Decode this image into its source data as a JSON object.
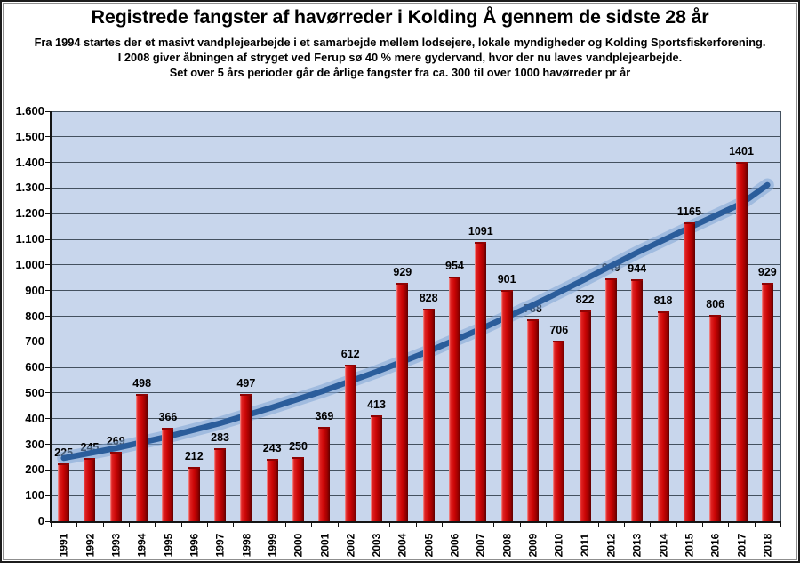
{
  "header": {
    "title": "Registrede fangster af havørreder i Kolding Å gennem de sidste 28 år",
    "subtitle_lines": [
      "Fra 1994 startes der et masivt vandplejearbejde i et samarbejde mellem lodsejere, lokale myndigheder og Kolding Sportsfiskerforening.",
      "I 2008 giver åbningen af stryget ved Ferup sø  40 % mere gydervand, hvor der nu laves vandplejearbejde.",
      "Set over 5 års perioder går de årlige fangster fra ca. 300 til over 1000 havørreder pr år"
    ]
  },
  "chart_data": {
    "type": "bar",
    "title": "Registrede fangster af havørreder i Kolding Å gennem de sidste 28 år",
    "categories": [
      "1991",
      "1992",
      "1993",
      "1994",
      "1995",
      "1996",
      "1997",
      "1998",
      "1999",
      "2000",
      "2001",
      "2002",
      "2003",
      "2004",
      "2005",
      "2006",
      "2007",
      "2008",
      "2009",
      "2010",
      "2011",
      "2012",
      "2013",
      "2014",
      "2015",
      "2016",
      "2017",
      "2018"
    ],
    "values": [
      225,
      245,
      269,
      498,
      366,
      212,
      283,
      497,
      243,
      250,
      369,
      612,
      413,
      929,
      828,
      954,
      1091,
      901,
      788,
      706,
      822,
      949,
      944,
      818,
      1165,
      806,
      1401,
      929
    ],
    "xlabel": "",
    "ylabel": "",
    "ylim": [
      0,
      1600
    ],
    "y_tick_step": 100,
    "y_tick_labels": [
      "0",
      "100",
      "200",
      "300",
      "400",
      "500",
      "600",
      "700",
      "800",
      "900",
      "1.000",
      "1.100",
      "1.200",
      "1.300",
      "1.400",
      "1.500",
      "1.600"
    ],
    "grid": true,
    "legend": "none",
    "colors": {
      "bar": "#cb0505",
      "bar_shadow": "#5e0000",
      "plot_background": "#c8d6ec",
      "gridline": "#44515f",
      "trend_core": "#2b5d9b",
      "trend_glow": "#7fa6d6",
      "text": "#000000"
    },
    "trend": {
      "type": "smooth-exponential-line",
      "points": [
        {
          "year": 1991,
          "value": 246
        },
        {
          "year": 1993,
          "value": 285
        },
        {
          "year": 1995,
          "value": 330
        },
        {
          "year": 1997,
          "value": 382
        },
        {
          "year": 1999,
          "value": 444
        },
        {
          "year": 2001,
          "value": 510
        },
        {
          "year": 2003,
          "value": 583
        },
        {
          "year": 2005,
          "value": 663
        },
        {
          "year": 2007,
          "value": 750
        },
        {
          "year": 2009,
          "value": 843
        },
        {
          "year": 2011,
          "value": 944
        },
        {
          "year": 2013,
          "value": 1048
        },
        {
          "year": 2015,
          "value": 1145
        },
        {
          "year": 2017,
          "value": 1239
        },
        {
          "year": 2018,
          "value": 1312
        }
      ]
    }
  }
}
